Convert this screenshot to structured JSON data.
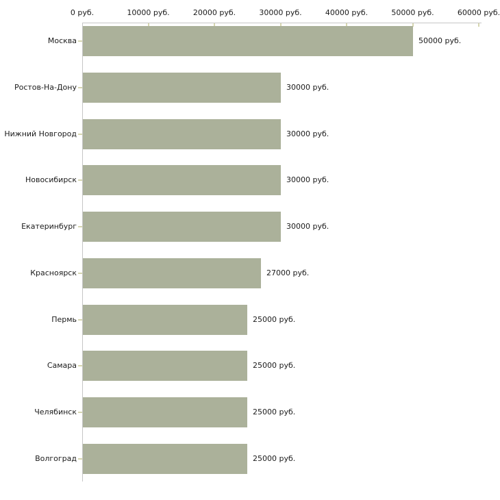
{
  "chart_data": {
    "type": "bar",
    "orientation": "horizontal",
    "title": "",
    "unit": "руб.",
    "categories": [
      "Москва",
      "Ростов-На-Дону",
      "Нижний Новгород",
      "Новосибирск",
      "Екатеринбург",
      "Красноярск",
      "Пермь",
      "Самара",
      "Челябинск",
      "Волгоград"
    ],
    "values": [
      50000,
      30000,
      30000,
      30000,
      30000,
      27000,
      25000,
      25000,
      25000,
      25000
    ],
    "value_labels": [
      "50000 руб.",
      "30000 руб.",
      "30000 руб.",
      "30000 руб.",
      "30000 руб.",
      "27000 руб.",
      "25000 руб.",
      "25000 руб.",
      "25000 руб.",
      "25000 руб."
    ],
    "x_axis": {
      "position": "top",
      "range": [
        0,
        60000
      ],
      "tick_values": [
        0,
        10000,
        20000,
        30000,
        40000,
        50000,
        60000
      ],
      "tick_labels": [
        "0 руб.",
        "10000 руб.",
        "20000 руб.",
        "30000 руб.",
        "40000 руб.",
        "50000 руб.",
        "60000 руб."
      ]
    },
    "ylabel": "",
    "xlabel": "",
    "legend": "none",
    "grid": "off"
  },
  "colors": {
    "bar": "#ABB19A",
    "axis": "#C6C6C6",
    "tick": "#D6D6B0",
    "text": "#1A1A1A",
    "background": "#FFFFFF"
  }
}
